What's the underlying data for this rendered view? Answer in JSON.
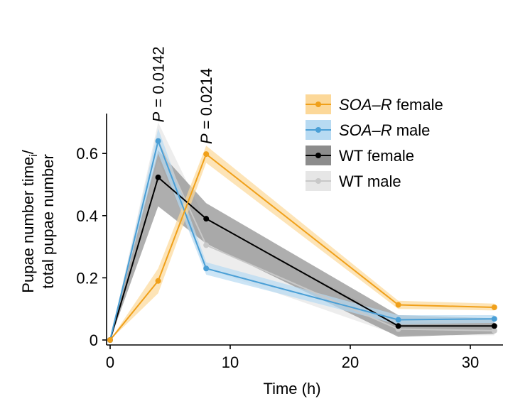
{
  "chart_data": {
    "type": "line",
    "title": "",
    "xlabel": "Time (h)",
    "ylabel_line1": "Pupae number time",
    "ylabel_sub": "i",
    "ylabel_suffix": "/",
    "ylabel_line2": "total pupae number",
    "xlim": [
      0,
      32.5
    ],
    "ylim": [
      0,
      0.7
    ],
    "xticks": [
      0,
      10,
      20,
      30
    ],
    "xtick_labels": [
      "0",
      "10",
      "20",
      "30"
    ],
    "yticks": [
      0,
      0.2,
      0.4,
      0.6
    ],
    "ytick_labels": [
      "0",
      "0.2",
      "0.4",
      "0.6"
    ],
    "x": [
      0,
      4,
      8,
      24,
      32
    ],
    "series": [
      {
        "name": "WT male",
        "name_italic": "",
        "name_rest": "WT male",
        "color": "#c8c8c8",
        "band_color": "#e6e6e6",
        "values": [
          0,
          0.64,
          0.305,
          0.035,
          0.03
        ],
        "lower": [
          0,
          0.58,
          0.23,
          0.015,
          0.015
        ],
        "upper": [
          0,
          0.7,
          0.38,
          0.06,
          0.05
        ]
      },
      {
        "name": "WT female",
        "name_italic": "",
        "name_rest": "WT female",
        "color": "#000000",
        "band_color": "#8c8c8c",
        "values": [
          0,
          0.523,
          0.39,
          0.045,
          0.045
        ],
        "lower": [
          0,
          0.43,
          0.31,
          0.01,
          0.02
        ],
        "upper": [
          0,
          0.61,
          0.44,
          0.08,
          0.07
        ]
      },
      {
        "name": "SOA–R male",
        "name_italic": "SOA–R",
        "name_rest": " male",
        "color": "#4a9fd6",
        "band_color": "#b7daf2",
        "values": [
          0,
          0.64,
          0.23,
          0.065,
          0.068
        ],
        "lower": [
          0,
          0.6,
          0.21,
          0.05,
          0.055
        ],
        "upper": [
          0,
          0.68,
          0.25,
          0.08,
          0.08
        ]
      },
      {
        "name": "SOA–R female",
        "name_italic": "SOA–R",
        "name_rest": " female",
        "color": "#f0a01a",
        "band_color": "#fcd899",
        "values": [
          0,
          0.19,
          0.598,
          0.113,
          0.105
        ],
        "lower": [
          0,
          0.15,
          0.57,
          0.1,
          0.095
        ],
        "upper": [
          0,
          0.23,
          0.625,
          0.126,
          0.117
        ]
      }
    ],
    "legend_order": [
      "SOA–R female",
      "SOA–R male",
      "WT female",
      "WT male"
    ],
    "legend_position": "top-right",
    "annotations": [
      {
        "italic": "P",
        "rest": " = 0.0142",
        "x": 4,
        "y": 0.7
      },
      {
        "italic": "P",
        "rest": " = 0.0214",
        "x": 8,
        "y": 0.63
      }
    ]
  }
}
